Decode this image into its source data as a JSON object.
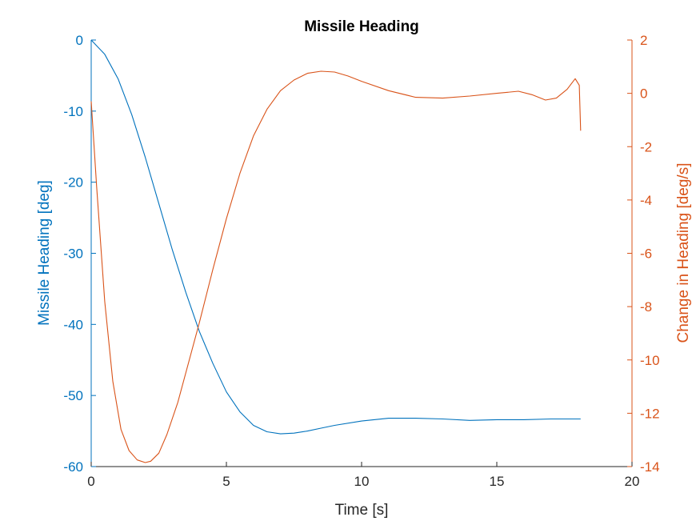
{
  "chart_data": {
    "type": "line",
    "title": "Missile Heading",
    "xlabel": "Time [s]",
    "ylabel_left": "Missile Heading [deg]",
    "ylabel_right": "Change in Heading [deg/s]",
    "xlim": [
      0,
      20
    ],
    "ylim_left": [
      -60,
      0
    ],
    "ylim_right": [
      -14,
      2
    ],
    "x_ticks": [
      0,
      5,
      10,
      15,
      20
    ],
    "y_left_ticks": [
      0,
      -10,
      -20,
      -30,
      -40,
      -50,
      -60
    ],
    "y_right_ticks": [
      2,
      0,
      -2,
      -4,
      -6,
      -8,
      -10,
      -12,
      -14
    ],
    "grid": false,
    "colors": {
      "left": "#0072BD",
      "right": "#D95319",
      "axes": "#262626"
    },
    "series": [
      {
        "axis": "left",
        "x": [
          0,
          0.5,
          1,
          1.5,
          2,
          2.5,
          3,
          3.5,
          4,
          4.5,
          5,
          5.5,
          6,
          6.5,
          7,
          7.5,
          8,
          8.5,
          9,
          10,
          11,
          12,
          13,
          14,
          15,
          16,
          17,
          18.1
        ],
        "y": [
          0,
          -2,
          -5.5,
          -10.5,
          -16.5,
          -23,
          -29.5,
          -35.5,
          -41,
          -45.5,
          -49.5,
          -52.3,
          -54.2,
          -55.1,
          -55.4,
          -55.3,
          -55,
          -54.6,
          -54.2,
          -53.6,
          -53.2,
          -53.2,
          -53.3,
          -53.5,
          -53.4,
          -53.4,
          -53.3,
          -53.3
        ]
      },
      {
        "axis": "right",
        "x": [
          0,
          0.2,
          0.5,
          0.8,
          1.1,
          1.4,
          1.7,
          2.0,
          2.2,
          2.5,
          2.8,
          3.2,
          3.6,
          4.0,
          4.5,
          5.0,
          5.5,
          6.0,
          6.5,
          7.0,
          7.5,
          8.0,
          8.5,
          9.0,
          9.5,
          10.0,
          11.0,
          12.0,
          13.0,
          14.0,
          15.0,
          15.8,
          16.3,
          16.8,
          17.2,
          17.6,
          17.9,
          18.05,
          18.1
        ],
        "y": [
          -0.3,
          -3.5,
          -7.8,
          -10.8,
          -12.6,
          -13.4,
          -13.75,
          -13.85,
          -13.8,
          -13.5,
          -12.8,
          -11.6,
          -10.1,
          -8.6,
          -6.6,
          -4.7,
          -3.0,
          -1.6,
          -0.6,
          0.1,
          0.5,
          0.75,
          0.83,
          0.8,
          0.65,
          0.45,
          0.1,
          -0.15,
          -0.18,
          -0.1,
          0,
          0.08,
          -0.05,
          -0.25,
          -0.18,
          0.15,
          0.55,
          0.3,
          -1.4
        ]
      }
    ]
  }
}
